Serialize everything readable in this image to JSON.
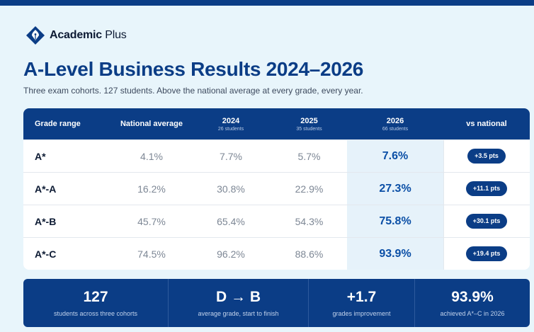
{
  "brand": {
    "name_bold": "Academic",
    "name_rest": "Plus",
    "logo_icon": "fountain-pen-nib-diamond-icon"
  },
  "title": "A-Level Business Results 2024–2026",
  "subtitle": "Three exam cohorts. 127 students. Above the national average at every grade, every year.",
  "colors": {
    "primary": "#0b3d86",
    "background": "#e8f5fb",
    "highlight_column": "#e6f2fa",
    "highlight_text": "#0b4fa6"
  },
  "table": {
    "headers": {
      "grade": "Grade range",
      "national": "National average",
      "y2024": "2024",
      "y2024_sub": "26 students",
      "y2025": "2025",
      "y2025_sub": "35 students",
      "y2026": "2026",
      "y2026_sub": "66 students",
      "vs": "vs national"
    },
    "rows": [
      {
        "grade": "A*",
        "national": "4.1%",
        "y2024": "7.7%",
        "y2025": "5.7%",
        "y2026": "7.6%",
        "vs": "+3.5 pts"
      },
      {
        "grade": "A*-A",
        "national": "16.2%",
        "y2024": "30.8%",
        "y2025": "22.9%",
        "y2026": "27.3%",
        "vs": "+11.1 pts"
      },
      {
        "grade": "A*-B",
        "national": "45.7%",
        "y2024": "65.4%",
        "y2025": "54.3%",
        "y2026": "75.8%",
        "vs": "+30.1 pts"
      },
      {
        "grade": "A*-C",
        "national": "74.5%",
        "y2024": "96.2%",
        "y2025": "88.6%",
        "y2026": "93.9%",
        "vs": "+19.4 pts"
      }
    ]
  },
  "stats": [
    {
      "value": "127",
      "label": "students across three cohorts"
    },
    {
      "value": "D → B",
      "label": "average grade, start to finish"
    },
    {
      "value": "+1.7",
      "label": "grades improvement"
    },
    {
      "value": "93.9%",
      "label": "achieved A*–C in 2026"
    }
  ]
}
